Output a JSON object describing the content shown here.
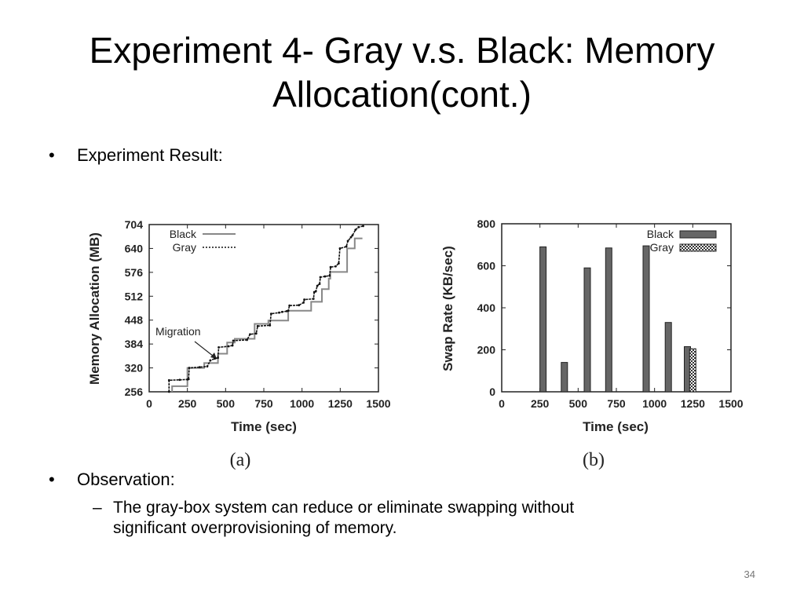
{
  "slide": {
    "title_line1": "Experiment 4- Gray v.s. Black: Memory",
    "title_line2": "Allocation(cont.)",
    "bullet1": "Experiment Result:",
    "bullet2": "Observation:",
    "sub_bullet_line1": "The gray-box system can reduce or eliminate swapping without",
    "sub_bullet_line2": "significant overprovisioning of memory.",
    "bullet_glyph": "•",
    "dash_glyph": "–",
    "page_number": "34"
  },
  "chart_data": [
    {
      "type": "line",
      "subcaption": "(a)",
      "xlabel": "Time (sec)",
      "ylabel": "Memory Allocation (MB)",
      "xlim": [
        0,
        1500
      ],
      "ylim": [
        256,
        704
      ],
      "xticks": [
        0,
        250,
        500,
        750,
        1000,
        1250,
        1500
      ],
      "yticks": [
        256,
        320,
        384,
        448,
        512,
        576,
        640,
        704
      ],
      "grid": false,
      "legend_position": "top-left",
      "annotation": "Migration",
      "series": [
        {
          "name": "Black",
          "color": "#888888",
          "points": [
            [
              150,
              256
            ],
            [
              150,
              271
            ],
            [
              250,
              271
            ],
            [
              250,
              320
            ],
            [
              360,
              320
            ],
            [
              360,
              333
            ],
            [
              450,
              333
            ],
            [
              450,
              358
            ],
            [
              510,
              358
            ],
            [
              510,
              388
            ],
            [
              560,
              388
            ],
            [
              560,
              398
            ],
            [
              690,
              398
            ],
            [
              690,
              438
            ],
            [
              780,
              438
            ],
            [
              780,
              447
            ],
            [
              910,
              447
            ],
            [
              910,
              473
            ],
            [
              1060,
              473
            ],
            [
              1060,
              497
            ],
            [
              1130,
              497
            ],
            [
              1130,
              531
            ],
            [
              1175,
              531
            ],
            [
              1175,
              559
            ],
            [
              1185,
              559
            ],
            [
              1185,
              577
            ],
            [
              1295,
              577
            ],
            [
              1295,
              640
            ],
            [
              1345,
              640
            ],
            [
              1345,
              667
            ],
            [
              1395,
              667
            ]
          ]
        },
        {
          "name": "Gray",
          "color": "#111111",
          "points": [
            [
              130,
              256
            ],
            [
              130,
              287
            ],
            [
              200,
              288
            ],
            [
              250,
              289
            ],
            [
              258,
              290
            ],
            [
              262,
              320
            ],
            [
              330,
              322
            ],
            [
              380,
              324
            ],
            [
              400,
              340
            ],
            [
              430,
              345
            ],
            [
              450,
              347
            ],
            [
              455,
              375
            ],
            [
              520,
              378
            ],
            [
              545,
              380
            ],
            [
              550,
              393
            ],
            [
              640,
              395
            ],
            [
              660,
              410
            ],
            [
              700,
              412
            ],
            [
              710,
              432
            ],
            [
              790,
              434
            ],
            [
              798,
              465
            ],
            [
              850,
              468
            ],
            [
              870,
              470
            ],
            [
              900,
              472
            ],
            [
              910,
              473
            ],
            [
              918,
              487
            ],
            [
              980,
              488
            ],
            [
              1010,
              495
            ],
            [
              1015,
              503
            ],
            [
              1075,
              505
            ],
            [
              1080,
              523
            ],
            [
              1090,
              525
            ],
            [
              1100,
              540
            ],
            [
              1115,
              545
            ],
            [
              1120,
              563
            ],
            [
              1150,
              565
            ],
            [
              1180,
              567
            ],
            [
              1187,
              590
            ],
            [
              1220,
              592
            ],
            [
              1240,
              600
            ],
            [
              1248,
              640
            ],
            [
              1290,
              645
            ],
            [
              1300,
              660
            ],
            [
              1320,
              670
            ],
            [
              1330,
              675
            ],
            [
              1350,
              690
            ],
            [
              1370,
              697
            ],
            [
              1400,
              700
            ]
          ]
        }
      ]
    },
    {
      "type": "bar",
      "subcaption": "(b)",
      "xlabel": "Time (sec)",
      "ylabel": "Swap Rate (KB/sec)",
      "xlim": [
        0,
        1500
      ],
      "ylim": [
        0,
        800
      ],
      "xticks": [
        0,
        250,
        500,
        750,
        1000,
        1250,
        1500
      ],
      "yticks": [
        0,
        200,
        400,
        600,
        800
      ],
      "grid": false,
      "legend_position": "top-right",
      "series": [
        {
          "name": "Black",
          "color": "#666666",
          "x": [
            270,
            410,
            560,
            700,
            945,
            1090,
            1215
          ],
          "values": [
            690,
            140,
            590,
            685,
            695,
            330,
            215
          ]
        },
        {
          "name": "Gray",
          "color": "checkered",
          "x": [
            1250
          ],
          "values": [
            205
          ]
        }
      ]
    }
  ]
}
